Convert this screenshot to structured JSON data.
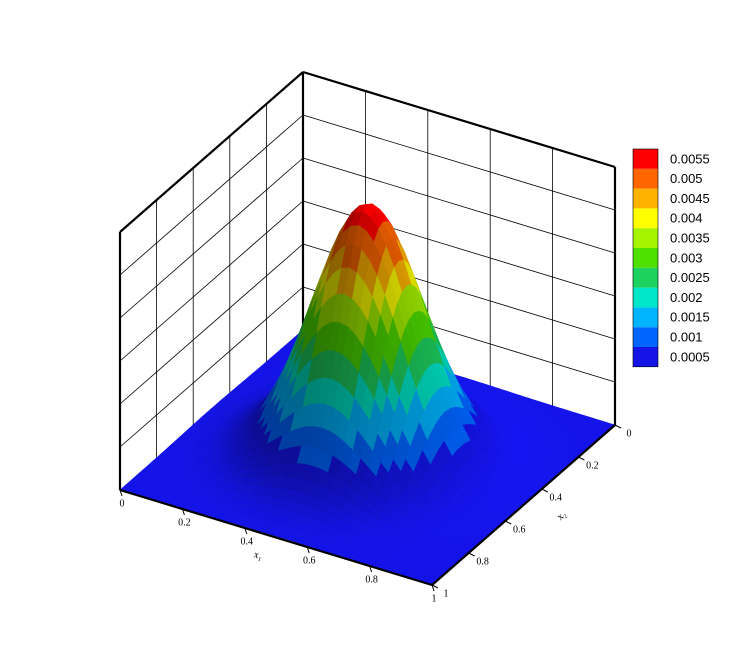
{
  "chart_data": {
    "type": "surface3d",
    "xlabel": "x₁",
    "ylabel": "x₂",
    "xlim": [
      0,
      1
    ],
    "ylim": [
      0,
      1
    ],
    "zlim": [
      0,
      0.006
    ],
    "xticks": [
      0,
      0.2,
      0.4,
      0.6,
      0.8,
      1
    ],
    "yticks": [
      0,
      0.2,
      0.4,
      0.6,
      0.8,
      1
    ],
    "levels": [
      0.0005,
      0.001,
      0.0015,
      0.002,
      0.0025,
      0.003,
      0.0035,
      0.004,
      0.0045,
      0.005,
      0.0055
    ],
    "colors": [
      "#1414e6",
      "#0064ff",
      "#00b4ff",
      "#00e6c8",
      "#1ed260",
      "#4ee000",
      "#a6f500",
      "#ffff00",
      "#ffb300",
      "#ff6600",
      "#ff0000"
    ]
  }
}
